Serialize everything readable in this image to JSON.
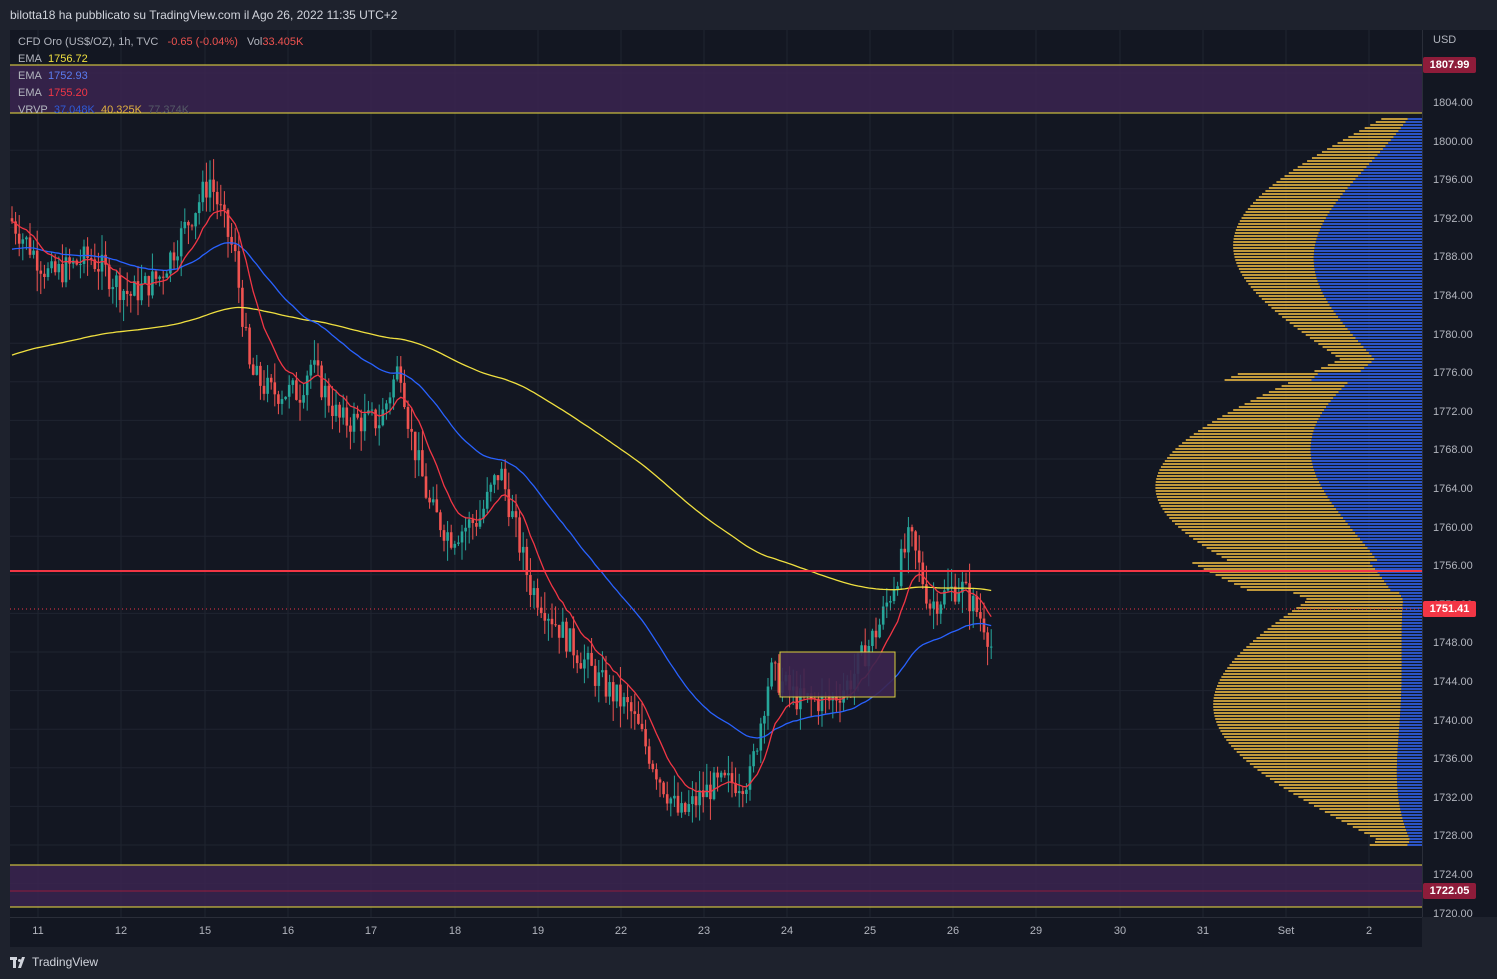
{
  "header": {
    "publisher_text": "bilotta18 ha pubblicato su TradingView.com il Ago 26, 2022 11:35 UTC+2"
  },
  "legend": {
    "symbol": "CFD Oro (US$/OZ), 1h, TVC",
    "change": "-0.65 (-0.04%)",
    "vol_label": "Vol",
    "vol_value": "33.405K",
    "ema1_label": "EMA",
    "ema1_value": "1756.72",
    "ema2_label": "EMA",
    "ema2_value": "1752.93",
    "ema3_label": "EMA",
    "ema3_value": "1755.20",
    "vrvp_label": "VRVP",
    "vrvp_v1": "37.048K",
    "vrvp_v2": "40.325K",
    "vrvp_v3": "77.374K"
  },
  "price_axis": {
    "currency": "USD",
    "ticks": [
      "1804.00",
      "1800.00",
      "1796.00",
      "1792.00",
      "1788.00",
      "1784.00",
      "1780.00",
      "1776.00",
      "1772.00",
      "1768.00",
      "1764.00",
      "1760.00",
      "1756.00",
      "1752.00",
      "1748.00",
      "1744.00",
      "1740.00",
      "1736.00",
      "1732.00",
      "1728.00",
      "1724.00",
      "1720.00"
    ],
    "tag_top": "1807.99",
    "tag_current": "1751.41",
    "tag_bottom": "1722.05"
  },
  "time_axis": {
    "labels": [
      "11",
      "12",
      "15",
      "16",
      "17",
      "18",
      "19",
      "22",
      "23",
      "24",
      "25",
      "26",
      "29",
      "30",
      "31",
      "Set",
      "2"
    ]
  },
  "colors": {
    "up": "#26a69a",
    "down": "#ef5350",
    "ema_fast": "#f23645",
    "ema_mid": "#2962ff",
    "ema_slow": "#f0e040",
    "vp_gold": "#e0b040",
    "vp_blue": "#2f5bd8",
    "zone_fill": "#3b2550",
    "zone_border": "#f0e040",
    "level": "#f23645",
    "tag_purple": "#8e1c3a"
  },
  "footer": {
    "brand": "TradingView"
  }
}
